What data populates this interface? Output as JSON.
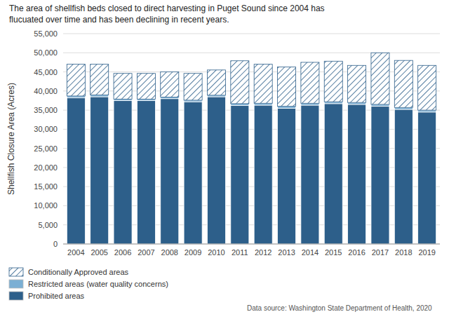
{
  "chart_data": {
    "type": "bar",
    "stacked": true,
    "title": "The area of shellfish beds closed to direct harvesting in Puget Sound since 2004 has",
    "subtitle": "flucuated over time and has been declining in recent years.",
    "y_label": "Shellfish Closure Area (Acres)",
    "annotations": [
      "Data source: Washington State Department of Health, 2020"
    ],
    "categories": [
      "2004",
      "2005",
      "2006",
      "2007",
      "2008",
      "2009",
      "2010",
      "2011",
      "2012",
      "2013",
      "2014",
      "2015",
      "2016",
      "2017",
      "2018",
      "2019"
    ],
    "series": [
      {
        "name": "Prohibited areas",
        "color": "#2d5f8a",
        "values": [
          38200,
          38500,
          37500,
          37500,
          38000,
          37200,
          38500,
          36200,
          36300,
          35500,
          36300,
          36700,
          36500,
          36000,
          35200,
          34500
        ]
      },
      {
        "name": "Restricted areas (water quality concerns)",
        "color": "#7bafd4",
        "values": [
          500,
          500,
          400,
          400,
          400,
          400,
          400,
          500,
          500,
          500,
          500,
          500,
          500,
          500,
          500,
          500
        ]
      },
      {
        "name": "Conditionally Approved areas",
        "color": "#2d5f8a",
        "values": [
          8300,
          8000,
          6700,
          6700,
          6600,
          7000,
          6600,
          11200,
          10200,
          10300,
          10700,
          10600,
          9700,
          13500,
          12300,
          11700
        ]
      }
    ],
    "ylim": [
      0,
      55000
    ],
    "yticks": [
      0,
      {
        "value": 5000,
        "label": "5,000"
      },
      {
        "value": 10000,
        "label": "10,000"
      },
      {
        "value": 15000,
        "label": "15,000"
      },
      {
        "value": 20000,
        "label": "20,000"
      },
      {
        "value": 25000,
        "label": "25,000"
      },
      {
        "value": 30000,
        "label": "30,000"
      },
      {
        "value": 35000,
        "label": "35,000"
      },
      {
        "value": 40000,
        "label": "40,000"
      },
      {
        "value": 45000,
        "label": "45,000"
      },
      {
        "value": 50000,
        "label": "50,000"
      },
      {
        "value": 55000,
        "label": "55,000"
      }
    ],
    "grid": true,
    "legend": "bottom"
  }
}
